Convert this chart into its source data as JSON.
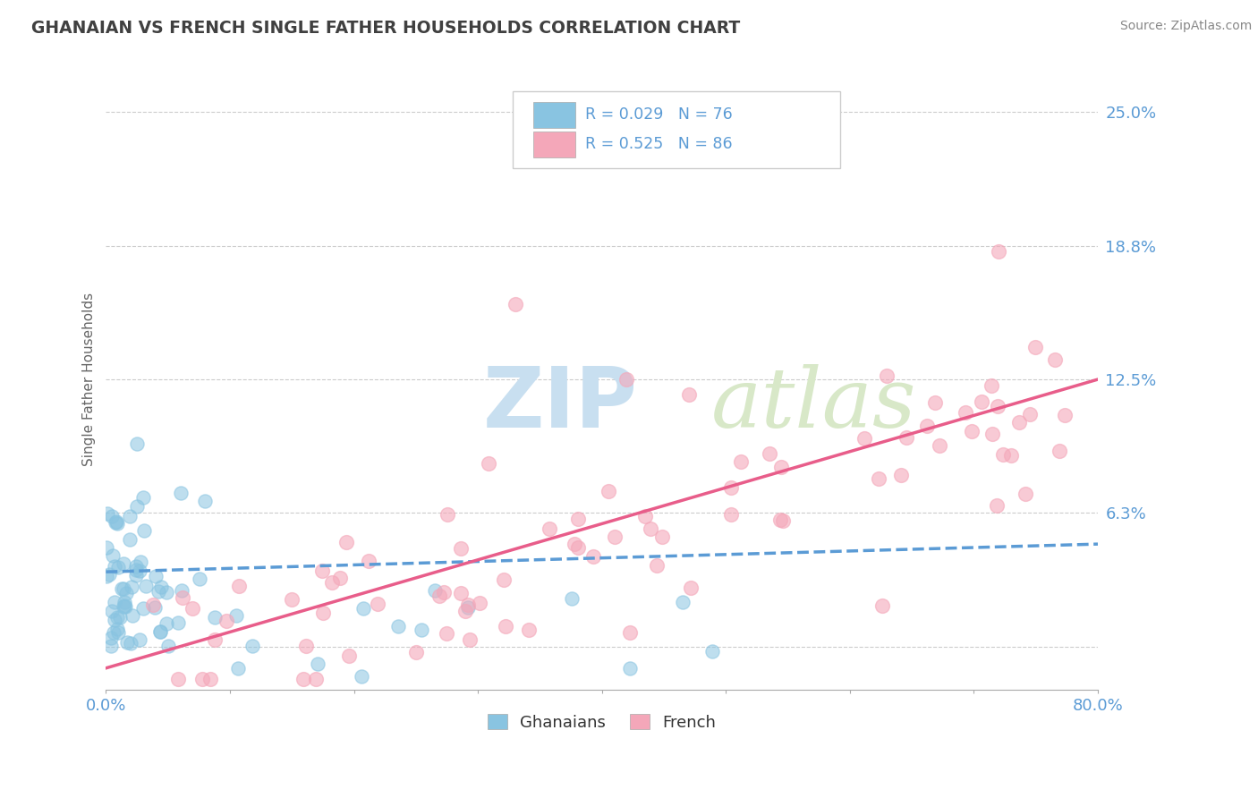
{
  "title": "GHANAIAN VS FRENCH SINGLE FATHER HOUSEHOLDS CORRELATION CHART",
  "source": "Source: ZipAtlas.com",
  "ylabel": "Single Father Households",
  "x_min": 0.0,
  "x_max": 0.8,
  "y_min": -0.02,
  "y_max": 0.27,
  "yticks": [
    0.0,
    0.0625,
    0.125,
    0.1875,
    0.25
  ],
  "ytick_labels": [
    "",
    "6.3%",
    "12.5%",
    "18.8%",
    "25.0%"
  ],
  "xticks": [
    0.0,
    0.1,
    0.2,
    0.3,
    0.4,
    0.5,
    0.6,
    0.7,
    0.8
  ],
  "xtick_labels": [
    "0.0%",
    "",
    "",
    "",
    "",
    "",
    "",
    "",
    "80.0%"
  ],
  "ghanaian_color": "#89c4e1",
  "french_color": "#f4a7b9",
  "ghanaian_line_color": "#5b9bd5",
  "french_line_color": "#e85d8a",
  "ghanaian_R": 0.029,
  "ghanaian_N": 76,
  "french_R": 0.525,
  "french_N": 86,
  "background_color": "#ffffff",
  "grid_color": "#cccccc",
  "axis_label_color": "#5b9bd5",
  "title_color": "#404040",
  "watermark_zip_color": "#c8dff0",
  "watermark_atlas_color": "#d8e8c8",
  "gh_trend_start": 0.035,
  "gh_trend_end": 0.048,
  "fr_trend_start": -0.01,
  "fr_trend_end": 0.125
}
